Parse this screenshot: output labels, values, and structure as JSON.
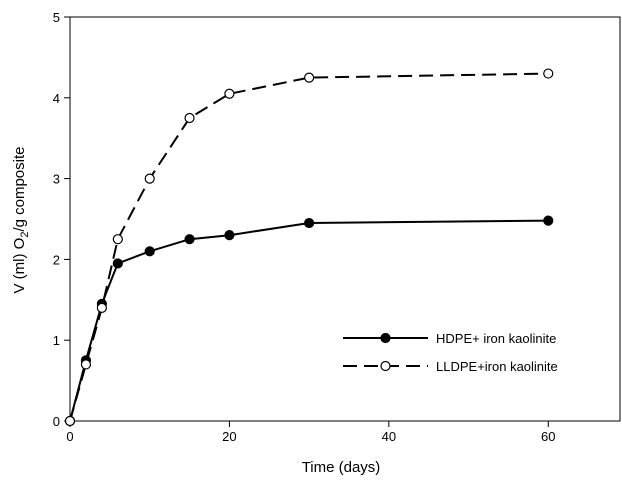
{
  "chart_data": {
    "type": "line",
    "title": "",
    "xlabel": "Time (days)",
    "ylabel": {
      "prefix": "V (ml) O",
      "subscript": "2",
      "suffix": "/g composite"
    },
    "xlim": [
      0,
      69
    ],
    "ylim": [
      0,
      5
    ],
    "x_ticks": [
      0,
      20,
      40,
      60
    ],
    "y_ticks": [
      0,
      1,
      2,
      3,
      4,
      5
    ],
    "grid": false,
    "legend_position": "bottom-right",
    "series": [
      {
        "name": "HDPE+ iron kaolinite",
        "marker": "filled-circle",
        "line_style": "solid",
        "color": "#000000",
        "x": [
          0,
          2,
          4,
          6,
          10,
          15,
          20,
          30,
          60
        ],
        "y": [
          0,
          0.75,
          1.45,
          1.95,
          2.1,
          2.25,
          2.3,
          2.45,
          2.48
        ]
      },
      {
        "name": "LLDPE+iron kaolinite",
        "marker": "open-circle",
        "line_style": "dashed",
        "color": "#000000",
        "x": [
          0,
          2,
          4,
          6,
          10,
          15,
          20,
          30,
          60
        ],
        "y": [
          0,
          0.7,
          1.4,
          2.25,
          3.0,
          3.75,
          4.05,
          4.25,
          4.3
        ]
      }
    ]
  }
}
